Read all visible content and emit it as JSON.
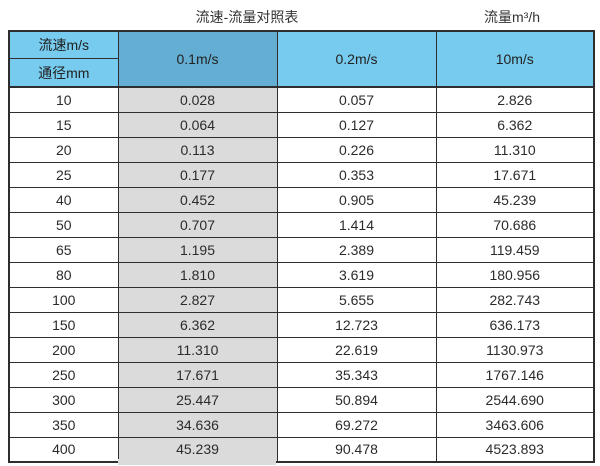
{
  "page": {
    "title_left": "流速-流量对照表",
    "title_right": "流量m³/h"
  },
  "table": {
    "corner": {
      "top": "流速m/s",
      "bottom": "通径mm"
    },
    "velocity_columns": [
      "0.1m/s",
      "0.2m/s",
      "10m/s"
    ],
    "highlighted_column": "0.1m/s",
    "rows": [
      [
        "10",
        "0.028",
        "0.057",
        "2.826"
      ],
      [
        "15",
        "0.064",
        "0.127",
        "6.362"
      ],
      [
        "20",
        "0.113",
        "0.226",
        "11.310"
      ],
      [
        "25",
        "0.177",
        "0.353",
        "17.671"
      ],
      [
        "40",
        "0.452",
        "0.905",
        "45.239"
      ],
      [
        "50",
        "0.707",
        "1.414",
        "70.686"
      ],
      [
        "65",
        "1.195",
        "2.389",
        "119.459"
      ],
      [
        "80",
        "1.810",
        "3.619",
        "180.956"
      ],
      [
        "100",
        "2.827",
        "5.655",
        "282.743"
      ],
      [
        "150",
        "6.362",
        "12.723",
        "636.173"
      ],
      [
        "200",
        "11.310",
        "22.619",
        "1130.973"
      ],
      [
        "250",
        "17.671",
        "35.343",
        "1767.146"
      ],
      [
        "300",
        "25.447",
        "50.894",
        "2544.690"
      ],
      [
        "350",
        "34.636",
        "69.272",
        "3463.606"
      ],
      [
        "400",
        "45.239",
        "90.478",
        "4523.893"
      ]
    ]
  },
  "chart_data": {
    "type": "table",
    "title": "流速-流量对照表",
    "unit_label": "流量m³/h",
    "row_axis_label": "通径mm",
    "col_axis_label": "流速m/s",
    "categories": [
      10,
      15,
      20,
      25,
      40,
      50,
      65,
      80,
      100,
      150,
      200,
      250,
      300,
      350,
      400
    ],
    "series": [
      {
        "name": "0.1m/s",
        "values": [
          0.028,
          0.064,
          0.113,
          0.177,
          0.452,
          0.707,
          1.195,
          1.81,
          2.827,
          6.362,
          11.31,
          17.671,
          25.447,
          34.636,
          45.239
        ]
      },
      {
        "name": "0.2m/s",
        "values": [
          0.057,
          0.127,
          0.226,
          0.353,
          0.905,
          1.414,
          2.389,
          3.619,
          5.655,
          12.723,
          22.619,
          35.343,
          50.894,
          69.272,
          90.478
        ]
      },
      {
        "name": "10m/s",
        "values": [
          2.826,
          6.362,
          11.31,
          17.671,
          45.239,
          70.686,
          119.459,
          180.956,
          282.743,
          636.173,
          1130.973,
          1767.146,
          2544.69,
          3463.606,
          4523.893
        ]
      }
    ]
  },
  "colors": {
    "header-blue": "#76cbee",
    "selected-blue": "#64aed3",
    "highlight-gray": "#dbdbdb",
    "border-dark": "#2e2e2e"
  }
}
